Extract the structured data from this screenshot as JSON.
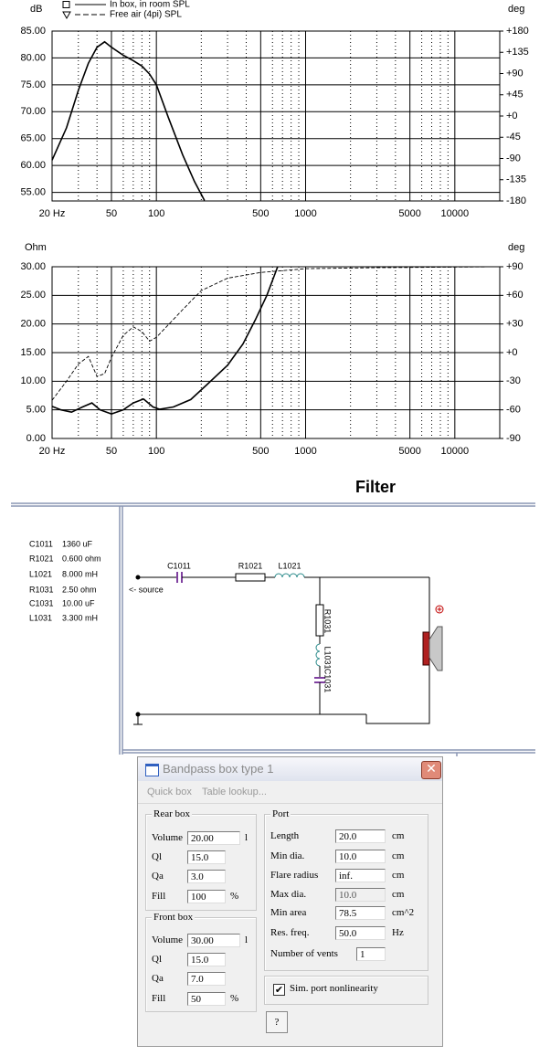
{
  "chart_data": [
    {
      "type": "line",
      "xscale": "log",
      "xlim": [
        20,
        20000
      ],
      "xticks": [
        {
          "value": 20,
          "label": "20 Hz"
        },
        50,
        100,
        500,
        1000,
        5000,
        10000
      ],
      "xgrid_minor": [
        30,
        40,
        60,
        70,
        80,
        90,
        200,
        300,
        400,
        600,
        700,
        800,
        900,
        2000,
        3000,
        4000,
        6000,
        7000,
        8000,
        9000
      ],
      "ylabel": "dB",
      "ylim": [
        53.4,
        85
      ],
      "yticks": [
        {
          "value": 55,
          "label": "55.00"
        },
        {
          "value": 60,
          "label": "60.00"
        },
        {
          "value": 65,
          "label": "65.00"
        },
        {
          "value": 70,
          "label": "70.00"
        },
        {
          "value": 75,
          "label": "75.00"
        },
        {
          "value": 80,
          "label": "80.00"
        },
        {
          "value": 85,
          "label": "85.00"
        }
      ],
      "y2label": "deg",
      "y2lim": [
        -180,
        180
      ],
      "y2ticks": [
        {
          "value": 180,
          "label": "+180"
        },
        {
          "value": 135,
          "label": "+135"
        },
        {
          "value": 90,
          "label": "+90"
        },
        {
          "value": 45,
          "label": "+45"
        },
        {
          "value": 0,
          "label": "+0"
        },
        -45,
        -90,
        -135,
        -180
      ],
      "grid": true,
      "legend": "top-left",
      "series": [
        {
          "name": "In box, in room SPL",
          "color": "#000000",
          "style": "solid",
          "marker": "square",
          "x": [
            20,
            25,
            30,
            35,
            40,
            45,
            50,
            60,
            70,
            80,
            90,
            100,
            120,
            150,
            180,
            210
          ],
          "values": [
            61,
            67,
            74,
            79,
            82,
            83,
            82,
            80.5,
            79.5,
            78.5,
            77,
            75,
            69,
            62,
            57,
            53.5
          ]
        },
        {
          "name": "Free air (4pi) SPL",
          "color": "#000000",
          "style": "dashed",
          "marker": "triangle",
          "x": [
            20,
            25,
            30,
            35,
            40,
            45,
            50,
            60,
            70,
            80,
            90,
            100,
            120,
            150,
            180,
            210
          ],
          "values": [
            61,
            67,
            74,
            79,
            82,
            83,
            82,
            80.5,
            79.5,
            78.5,
            77,
            75,
            69,
            62,
            57,
            53.5
          ]
        }
      ]
    },
    {
      "type": "line",
      "xscale": "log",
      "xlim": [
        20,
        20000
      ],
      "xticks": [
        {
          "value": 20,
          "label": "20 Hz"
        },
        50,
        100,
        500,
        1000,
        5000,
        10000
      ],
      "xgrid_minor": [
        30,
        40,
        60,
        70,
        80,
        90,
        200,
        300,
        400,
        600,
        700,
        800,
        900,
        2000,
        3000,
        4000,
        6000,
        7000,
        8000,
        9000
      ],
      "ylabel": "Ohm",
      "ylim": [
        0,
        30
      ],
      "yticks": [
        {
          "value": 0,
          "label": "0.00"
        },
        {
          "value": 5,
          "label": "5.00"
        },
        {
          "value": 10,
          "label": "10.00"
        },
        {
          "value": 15,
          "label": "15.00"
        },
        {
          "value": 20,
          "label": "20.00"
        },
        {
          "value": 25,
          "label": "25.00"
        },
        {
          "value": 30,
          "label": "30.00"
        }
      ],
      "y2label": "deg",
      "y2lim": [
        -90,
        90
      ],
      "y2ticks": [
        {
          "value": 90,
          "label": "+90"
        },
        {
          "value": 60,
          "label": "+60"
        },
        {
          "value": 30,
          "label": "+30"
        },
        {
          "value": 0,
          "label": "+0"
        },
        -30,
        -60,
        -90
      ],
      "grid": true,
      "series": [
        {
          "color": "#000000",
          "style": "solid",
          "x": [
            20,
            23,
            27,
            32,
            37,
            42,
            50,
            60,
            70,
            82,
            95,
            105,
            130,
            170,
            220,
            300,
            380,
            460,
            550,
            650
          ],
          "values": [
            5.6,
            5,
            4.6,
            5.5,
            6.2,
            5,
            4.3,
            5,
            6.2,
            6.9,
            5.5,
            5.1,
            5.5,
            6.8,
            9.5,
            12.8,
            16.5,
            20.7,
            25,
            30
          ]
        },
        {
          "color": "#000000",
          "style": "dashed",
          "axis": "y2",
          "x": [
            20,
            25,
            30,
            35,
            40,
            45,
            50,
            60,
            70,
            80,
            90,
            100,
            150,
            200,
            300,
            500,
            1000,
            3000,
            20000
          ],
          "values": [
            -50,
            -30,
            -12,
            -4,
            -25,
            -22,
            -5,
            18,
            27,
            22,
            12,
            16,
            45,
            65,
            78,
            84,
            88,
            89,
            90
          ]
        }
      ]
    }
  ],
  "filter": {
    "title": "Filter",
    "components": [
      [
        "C1011",
        "1360 uF"
      ],
      [
        "R1021",
        "0.600 ohm"
      ],
      [
        "L1021",
        "8.000 mH"
      ],
      [
        "R1031",
        "2.50 ohm"
      ],
      [
        "C1031",
        "10.00 uF"
      ],
      [
        "L1031",
        "3.300 mH"
      ]
    ],
    "schematic_labels": [
      "C1011",
      "R1021",
      "L1021",
      "R1031",
      "L1031",
      "C1031",
      "<- source"
    ]
  },
  "dialog": {
    "title": "Bandpass box type 1",
    "menu": [
      "Quick box",
      "Table lookup..."
    ],
    "rear_box": {
      "title": "Rear box",
      "fields": [
        {
          "label": "Volume",
          "value": "20.00",
          "unit": "l"
        },
        {
          "label": "Ql",
          "value": "15.0"
        },
        {
          "label": "Qa",
          "value": "3.0"
        },
        {
          "label": "Fill",
          "value": "100",
          "unit": "%"
        }
      ]
    },
    "front_box": {
      "title": "Front box",
      "fields": [
        {
          "label": "Volume",
          "value": "30.00",
          "unit": "l"
        },
        {
          "label": "Ql",
          "value": "15.0"
        },
        {
          "label": "Qa",
          "value": "7.0"
        },
        {
          "label": "Fill",
          "value": "50",
          "unit": "%"
        }
      ]
    },
    "port": {
      "title": "Port",
      "fields": [
        {
          "label": "Length",
          "value": "20.0",
          "unit": "cm"
        },
        {
          "label": "Min dia.",
          "value": "10.0",
          "unit": "cm"
        },
        {
          "label": "Flare radius",
          "value": "inf.",
          "unit": "cm"
        },
        {
          "label": "Max dia.",
          "value": "10.0",
          "unit": "cm"
        },
        {
          "label": "Min area",
          "value": "78.5",
          "unit": "cm^2"
        },
        {
          "label": "Res. freq.",
          "value": "50.0",
          "unit": "Hz"
        },
        {
          "label": "Number of vents",
          "value": "1"
        }
      ]
    },
    "checkbox": "Sim. port nonlinearity",
    "help_button": "?"
  }
}
